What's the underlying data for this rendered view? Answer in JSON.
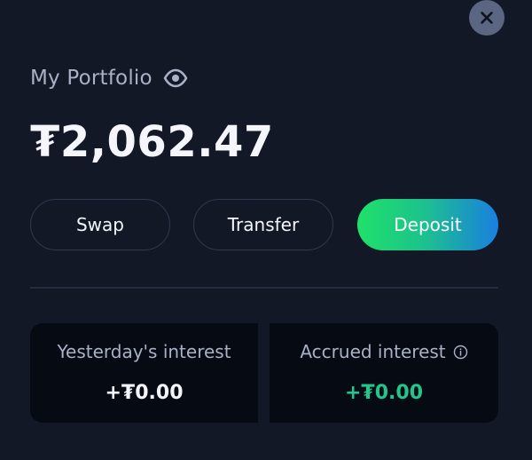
{
  "header": {
    "close_icon": "close-icon"
  },
  "portfolio": {
    "label": "My Portfolio",
    "visibility_icon": "eye-icon",
    "balance": "₮2,062.47"
  },
  "actions": {
    "swap_label": "Swap",
    "transfer_label": "Transfer",
    "deposit_label": "Deposit"
  },
  "interest": {
    "yesterday": {
      "title": "Yesterday's interest",
      "value": "+₮0.00"
    },
    "accrued": {
      "title": "Accrued interest",
      "info_icon": "info-icon",
      "value": "+₮0.00"
    }
  },
  "colors": {
    "background": "#121826",
    "card_background": "#060a12",
    "muted_text": "#a8b1c6",
    "positive": "#22c58b",
    "deposit_gradient_start": "#1fe06a",
    "deposit_gradient_end": "#1a7fe0"
  }
}
